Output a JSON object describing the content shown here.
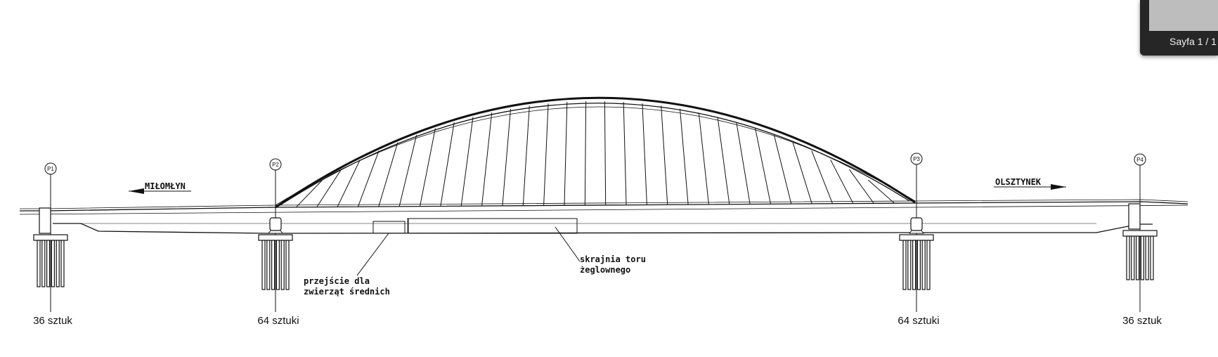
{
  "viewer": {
    "page_indicator": "Sayfa 1 / 1"
  },
  "directions": {
    "left": "MIŁOMŁYN",
    "right": "OLSZTYNEK"
  },
  "annotations": {
    "animal_crossing": [
      "przejście dla",
      "zwierząt średnich"
    ],
    "navigation_clearance": [
      "skrajnia toru",
      "żeglownego"
    ]
  },
  "piers": [
    {
      "label": "P1",
      "pile_count": "36 sztuk"
    },
    {
      "label": "P2",
      "pile_count": "64 sztuki"
    },
    {
      "label": "P3",
      "pile_count": "64 sztuki"
    },
    {
      "label": "P4",
      "pile_count": "36 sztuk"
    }
  ]
}
